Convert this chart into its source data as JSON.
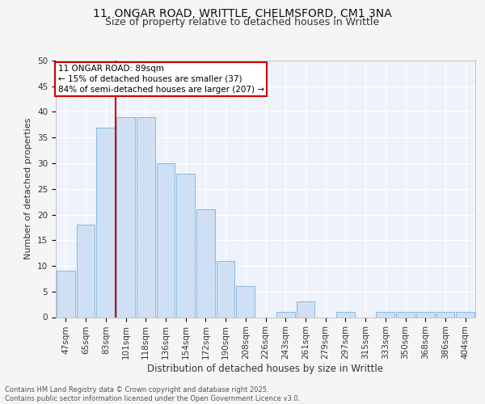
{
  "title1": "11, ONGAR ROAD, WRITTLE, CHELMSFORD, CM1 3NA",
  "title2": "Size of property relative to detached houses in Writtle",
  "xlabel": "Distribution of detached houses by size in Writtle",
  "ylabel": "Number of detached properties",
  "footnote": "Contains HM Land Registry data © Crown copyright and database right 2025.\nContains public sector information licensed under the Open Government Licence v3.0.",
  "categories": [
    "47sqm",
    "65sqm",
    "83sqm",
    "101sqm",
    "118sqm",
    "136sqm",
    "154sqm",
    "172sqm",
    "190sqm",
    "208sqm",
    "226sqm",
    "243sqm",
    "261sqm",
    "279sqm",
    "297sqm",
    "315sqm",
    "333sqm",
    "350sqm",
    "368sqm",
    "386sqm",
    "404sqm"
  ],
  "values": [
    9,
    18,
    37,
    39,
    39,
    30,
    28,
    21,
    11,
    6,
    0,
    1,
    3,
    0,
    1,
    0,
    1,
    1,
    1,
    1,
    1
  ],
  "bar_color": "#cfe0f5",
  "bar_edge_color": "#7ab0d8",
  "vline_x": 2.5,
  "vline_color": "#cc0000",
  "annotation_line1": "11 ONGAR ROAD: 89sqm",
  "annotation_line2": "← 15% of detached houses are smaller (37)",
  "annotation_line3": "84% of semi-detached houses are larger (207) →",
  "annotation_box_facecolor": "#ffffff",
  "annotation_box_edgecolor": "#cc0000",
  "ylim": [
    0,
    50
  ],
  "yticks": [
    0,
    5,
    10,
    15,
    20,
    25,
    30,
    35,
    40,
    45,
    50
  ],
  "bg_color": "#eef2fa",
  "grid_color": "#ffffff",
  "fig_facecolor": "#f5f5f5",
  "title_fontsize": 10,
  "subtitle_fontsize": 9,
  "tick_fontsize": 7.5,
  "ylabel_fontsize": 8,
  "xlabel_fontsize": 8.5,
  "footnote_fontsize": 6,
  "annotation_fontsize": 7.5
}
